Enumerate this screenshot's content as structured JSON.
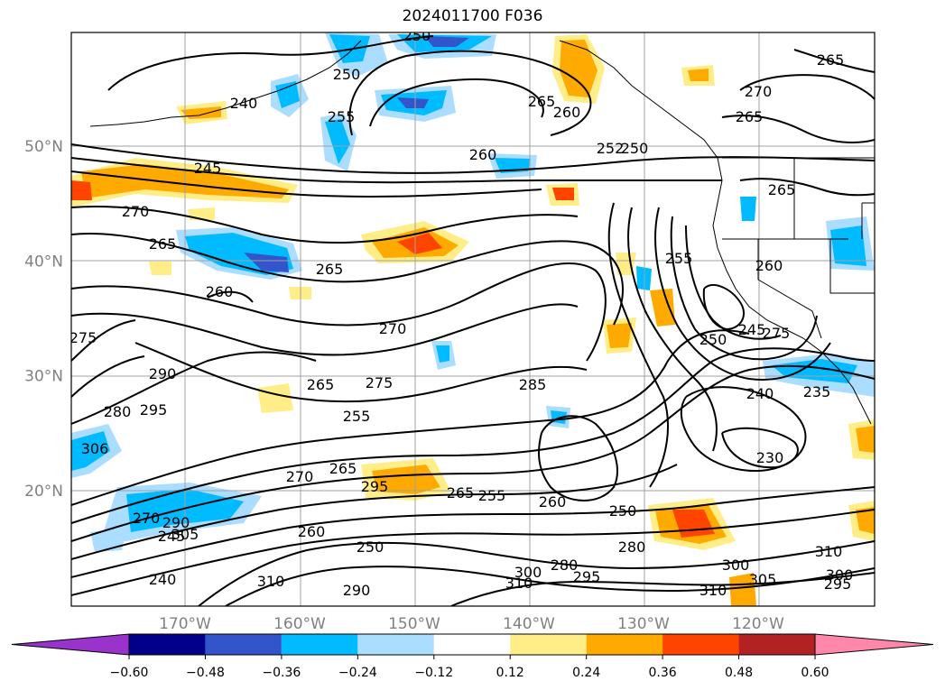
{
  "title": "2024011700 F036",
  "map": {
    "lat_labels": [
      {
        "lat": 50,
        "text": "50°N"
      },
      {
        "lat": 40,
        "text": "40°N"
      },
      {
        "lat": 30,
        "text": "30°N"
      },
      {
        "lat": 20,
        "text": "20°N"
      }
    ],
    "lon_labels": [
      {
        "lon": -170,
        "text": "170°W"
      },
      {
        "lon": -160,
        "text": "160°W"
      },
      {
        "lon": -150,
        "text": "150°W"
      },
      {
        "lon": -140,
        "text": "140°W"
      },
      {
        "lon": -130,
        "text": "130°W"
      },
      {
        "lon": -120,
        "text": "120°W"
      }
    ],
    "contour_labels": [
      "250",
      "240",
      "255",
      "250",
      "265",
      "260",
      "252",
      "250",
      "265",
      "270",
      "265",
      "245",
      "260",
      "265",
      "270",
      "265",
      "265",
      "260",
      "255",
      "260",
      "270",
      "275",
      "275",
      "290",
      "280",
      "295",
      "306",
      "265",
      "265",
      "255",
      "285",
      "275",
      "250",
      "245",
      "240",
      "235",
      "270",
      "265",
      "230",
      "270",
      "290",
      "295",
      "260",
      "255",
      "260",
      "250",
      "245",
      "280",
      "250",
      "240",
      "310",
      "280",
      "295",
      "310",
      "300",
      "290",
      "300",
      "305",
      "310",
      "300",
      "295",
      "305",
      "310"
    ]
  },
  "colorbar": {
    "colors": [
      "#9933cc",
      "#00008b",
      "#3355cc",
      "#00bbff",
      "#aaddff",
      "#ffffff",
      "#ffee88",
      "#ffaa00",
      "#ff4400",
      "#b22222",
      "#ff88aa"
    ],
    "tick_labels": [
      "−0.60",
      "−0.48",
      "−0.36",
      "−0.24",
      "−0.12",
      "0.12",
      "0.24",
      "0.36",
      "0.48",
      "0.60"
    ]
  }
}
